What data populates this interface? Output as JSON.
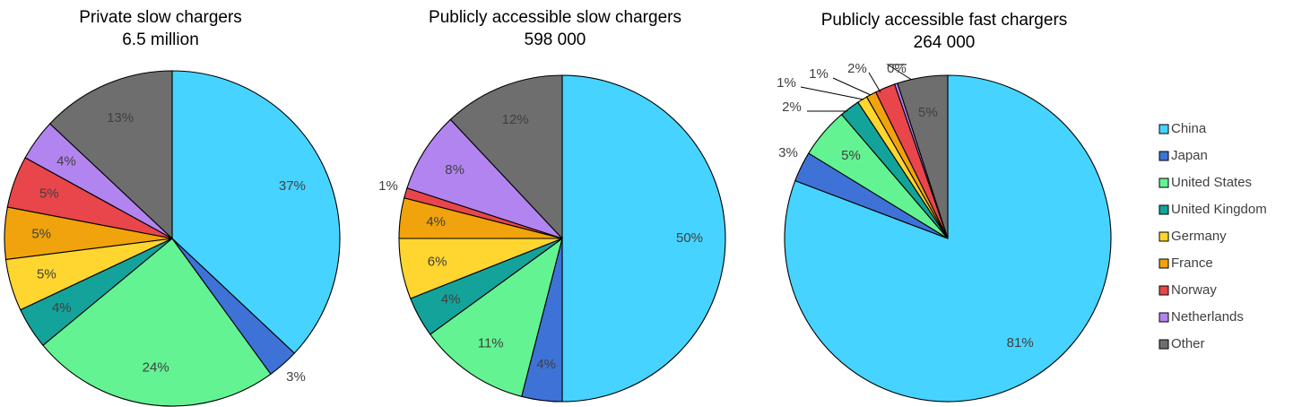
{
  "chart_data": [
    {
      "type": "pie",
      "title": "Private slow chargers",
      "subtitle": "6.5 million",
      "categories": [
        "China",
        "Japan",
        "United States",
        "United Kingdom",
        "Germany",
        "France",
        "Norway",
        "Netherlands",
        "Other"
      ],
      "values": [
        37,
        3,
        24,
        4,
        5,
        5,
        5,
        4,
        13
      ],
      "labels": [
        "37%",
        "3%",
        "24%",
        "4%",
        "5%",
        "5%",
        "5%",
        "4%",
        "13%"
      ]
    },
    {
      "type": "pie",
      "title": "Publicly accessible slow chargers",
      "subtitle": "598 000",
      "categories": [
        "China",
        "Japan",
        "United States",
        "United Kingdom",
        "Germany",
        "France",
        "Norway",
        "Netherlands",
        "Other"
      ],
      "values": [
        50,
        4,
        11,
        4,
        6,
        4,
        1,
        8,
        12
      ],
      "labels": [
        "50%",
        "4%",
        "11%",
        "4%",
        "6%",
        "4%",
        "1%",
        "8%",
        "12%"
      ]
    },
    {
      "type": "pie",
      "title": "Publicly accessible fast chargers",
      "subtitle": "264 000",
      "categories": [
        "China",
        "Japan",
        "United States",
        "United Kingdom",
        "Germany",
        "France",
        "Norway",
        "Netherlands",
        "Other"
      ],
      "values": [
        81,
        3,
        5,
        2,
        1,
        1,
        2,
        0.3,
        5
      ],
      "labels": [
        "81%",
        "3%",
        "5%",
        "2%",
        "1%",
        "1%",
        "2%",
        "0%",
        "5%"
      ]
    }
  ],
  "legend": {
    "items": [
      {
        "label": "China",
        "color": "#47D3FF"
      },
      {
        "label": "Japan",
        "color": "#3F72D6"
      },
      {
        "label": "United States",
        "color": "#63F392"
      },
      {
        "label": "United Kingdom",
        "color": "#13A39A"
      },
      {
        "label": "Germany",
        "color": "#FFD52F"
      },
      {
        "label": "France",
        "color": "#F0A30C"
      },
      {
        "label": "Norway",
        "color": "#E8464B"
      },
      {
        "label": "Netherlands",
        "color": "#B284F0"
      },
      {
        "label": "Other",
        "color": "#6E6E6E"
      }
    ]
  }
}
